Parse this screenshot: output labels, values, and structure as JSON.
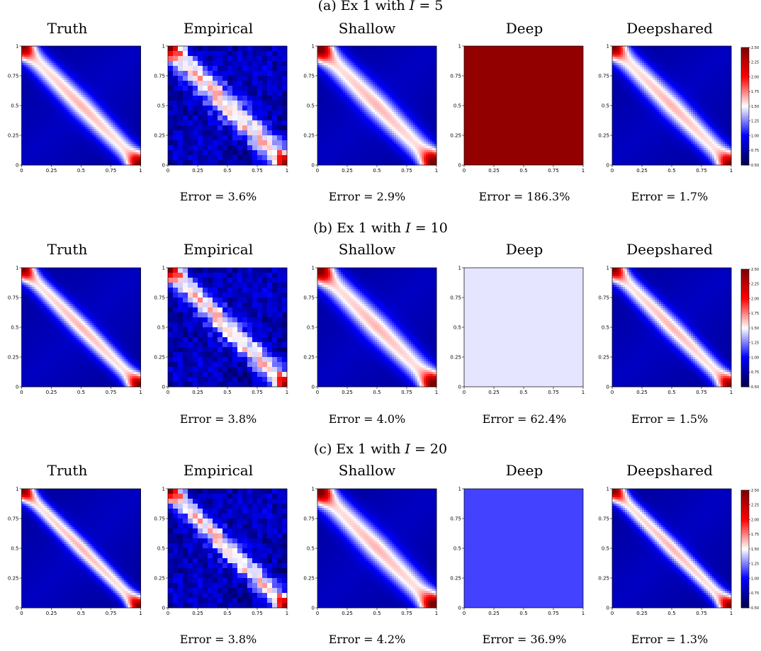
{
  "colors": {
    "cmap_low": "#00004c",
    "cmap_midlow": "#0000ff",
    "cmap_mid": "#ffffff",
    "cmap_midhigh": "#ff0000",
    "cmap_high": "#7f0000"
  },
  "chart_data": [
    {
      "type": "heatmap",
      "title": "(a) Ex 1 with I = 5",
      "title_parts": {
        "prefix": "(a) Ex 1 with ",
        "var": "I",
        "suffix": " = 5"
      },
      "panels": [
        {
          "name": "Truth",
          "error": "",
          "mode": "truth",
          "width": 0.07
        },
        {
          "name": "Empirical",
          "error": "Error = 3.6%",
          "mode": "empirical",
          "width": 0.075
        },
        {
          "name": "Shallow",
          "error": "Error = 2.9%",
          "mode": "shallow",
          "width": 0.08
        },
        {
          "name": "Deep",
          "error": "Error = 186.3%",
          "mode": "constant",
          "value": 2.42
        },
        {
          "name": "Deepshared",
          "error": "Error = 1.7%",
          "mode": "truth",
          "width": 0.072
        }
      ],
      "xlim": [
        0,
        1
      ],
      "ylim": [
        0,
        1
      ],
      "xticks": [
        "0",
        "0.25",
        "0.5",
        "0.75",
        "1"
      ],
      "yticks": [
        "0",
        "0.25",
        "0.5",
        "0.75",
        "1"
      ],
      "colorbar": {
        "range": [
          0.5,
          2.5
        ],
        "ticks": [
          "0.50",
          "0.75",
          "1.00",
          "1.25",
          "1.50",
          "1.75",
          "2.00",
          "2.25",
          "2.50"
        ]
      }
    },
    {
      "type": "heatmap",
      "title": "(b) Ex 1 with I = 10",
      "title_parts": {
        "prefix": "(b) Ex 1 with ",
        "var": "I",
        "suffix": " = 10"
      },
      "panels": [
        {
          "name": "Truth",
          "error": "",
          "mode": "truth",
          "width": 0.06
        },
        {
          "name": "Empirical",
          "error": "Error = 3.8%",
          "mode": "empirical",
          "width": 0.065
        },
        {
          "name": "Shallow",
          "error": "Error = 4.0%",
          "mode": "shallow",
          "width": 0.08
        },
        {
          "name": "Deep",
          "error": "Error = 62.4%",
          "mode": "constant",
          "value": 1.45
        },
        {
          "name": "Deepshared",
          "error": "Error = 1.5%",
          "mode": "truth",
          "width": 0.062
        }
      ],
      "xlim": [
        0,
        1
      ],
      "ylim": [
        0,
        1
      ],
      "xticks": [
        "0",
        "0.25",
        "0.5",
        "0.75",
        "1"
      ],
      "yticks": [
        "0",
        "0.25",
        "0.5",
        "0.75",
        "1"
      ],
      "colorbar": {
        "range": [
          0.5,
          2.5
        ],
        "ticks": [
          "0.50",
          "0.75",
          "1.00",
          "1.25",
          "1.50",
          "1.75",
          "2.00",
          "2.25",
          "2.50"
        ]
      }
    },
    {
      "type": "heatmap",
      "title": "(c) Ex 1 with I = 20",
      "title_parts": {
        "prefix": "(c) Ex 1 with ",
        "var": "I",
        "suffix": " = 20"
      },
      "panels": [
        {
          "name": "Truth",
          "error": "",
          "mode": "truth",
          "width": 0.052
        },
        {
          "name": "Empirical",
          "error": "Error = 3.8%",
          "mode": "empirical",
          "width": 0.058
        },
        {
          "name": "Shallow",
          "error": "Error = 4.2%",
          "mode": "shallow",
          "width": 0.08
        },
        {
          "name": "Deep",
          "error": "Error = 36.9%",
          "mode": "constant",
          "value": 1.13
        },
        {
          "name": "Deepshared",
          "error": "Error = 1.3%",
          "mode": "truth",
          "width": 0.054
        }
      ],
      "xlim": [
        0,
        1
      ],
      "ylim": [
        0,
        1
      ],
      "xticks": [
        "0",
        "0.25",
        "0.5",
        "0.75",
        "1"
      ],
      "yticks": [
        "0",
        "0.25",
        "0.5",
        "0.75",
        "1"
      ],
      "colorbar": {
        "range": [
          0.5,
          2.5
        ],
        "ticks": [
          "0.50",
          "0.75",
          "1.00",
          "1.25",
          "1.50",
          "1.75",
          "2.00",
          "2.25",
          "2.50"
        ]
      }
    }
  ]
}
